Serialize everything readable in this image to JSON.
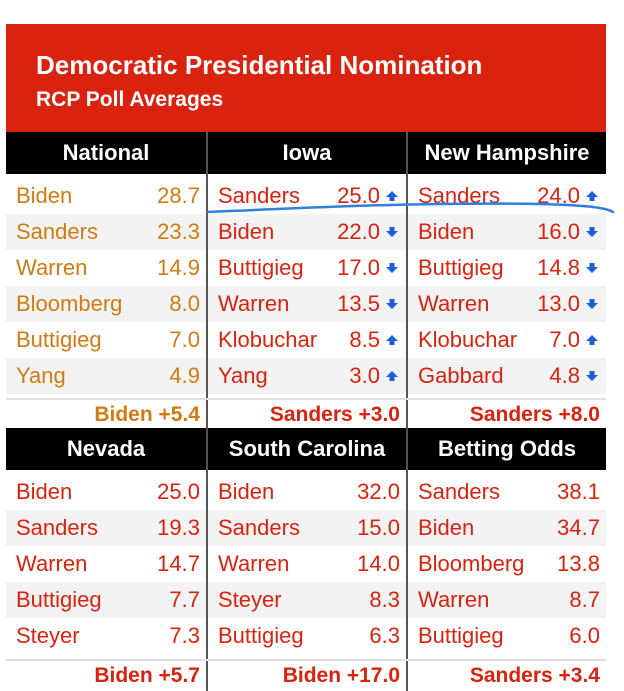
{
  "banner": {
    "title": "Democratic Presidential Nomination",
    "subtitle": "RCP Poll Averages"
  },
  "colors": {
    "red": "#d9230f",
    "orange": "#d17b12",
    "black": "#000000"
  },
  "panels": [
    {
      "header": "National",
      "color": "orange",
      "rows": [
        {
          "name": "Biden",
          "value": "28.7"
        },
        {
          "name": "Sanders",
          "value": "23.3"
        },
        {
          "name": "Warren",
          "value": "14.9"
        },
        {
          "name": "Bloomberg",
          "value": "8.0"
        },
        {
          "name": "Buttigieg",
          "value": "7.0"
        },
        {
          "name": "Yang",
          "value": "4.9"
        }
      ],
      "spread": "Biden +5.4"
    },
    {
      "header": "Iowa",
      "color": "red",
      "rows": [
        {
          "name": "Sanders",
          "value": "25.0",
          "trend": "up"
        },
        {
          "name": "Biden",
          "value": "22.0",
          "trend": "down"
        },
        {
          "name": "Buttigieg",
          "value": "17.0",
          "trend": "down"
        },
        {
          "name": "Warren",
          "value": "13.5",
          "trend": "down"
        },
        {
          "name": "Klobuchar",
          "value": "8.5",
          "trend": "up"
        },
        {
          "name": "Yang",
          "value": "3.0",
          "trend": "up"
        }
      ],
      "spread": "Sanders +3.0"
    },
    {
      "header": "New Hampshire",
      "color": "red",
      "rows": [
        {
          "name": "Sanders",
          "value": "24.0",
          "trend": "up"
        },
        {
          "name": "Biden",
          "value": "16.0",
          "trend": "down"
        },
        {
          "name": "Buttigieg",
          "value": "14.8",
          "trend": "down"
        },
        {
          "name": "Warren",
          "value": "13.0",
          "trend": "down"
        },
        {
          "name": "Klobuchar",
          "value": "7.0",
          "trend": "up"
        },
        {
          "name": "Gabbard",
          "value": "4.8",
          "trend": "down"
        }
      ],
      "spread": "Sanders +8.0"
    },
    {
      "header": "Nevada",
      "color": "red",
      "rows": [
        {
          "name": "Biden",
          "value": "25.0"
        },
        {
          "name": "Sanders",
          "value": "19.3"
        },
        {
          "name": "Warren",
          "value": "14.7"
        },
        {
          "name": "Buttigieg",
          "value": "7.7"
        },
        {
          "name": "Steyer",
          "value": "7.3"
        }
      ],
      "spread": "Biden +5.7"
    },
    {
      "header": "South Carolina",
      "color": "red",
      "rows": [
        {
          "name": "Biden",
          "value": "32.0"
        },
        {
          "name": "Sanders",
          "value": "15.0"
        },
        {
          "name": "Warren",
          "value": "14.0"
        },
        {
          "name": "Steyer",
          "value": "8.3"
        },
        {
          "name": "Buttigieg",
          "value": "6.3"
        }
      ],
      "spread": "Biden +17.0"
    },
    {
      "header": "Betting Odds",
      "color": "red",
      "rows": [
        {
          "name": "Sanders",
          "value": "38.1"
        },
        {
          "name": "Biden",
          "value": "34.7"
        },
        {
          "name": "Bloomberg",
          "value": "13.8"
        },
        {
          "name": "Warren",
          "value": "8.7"
        },
        {
          "name": "Buttigieg",
          "value": "6.0"
        }
      ],
      "spread": "Sanders +3.4"
    }
  ]
}
